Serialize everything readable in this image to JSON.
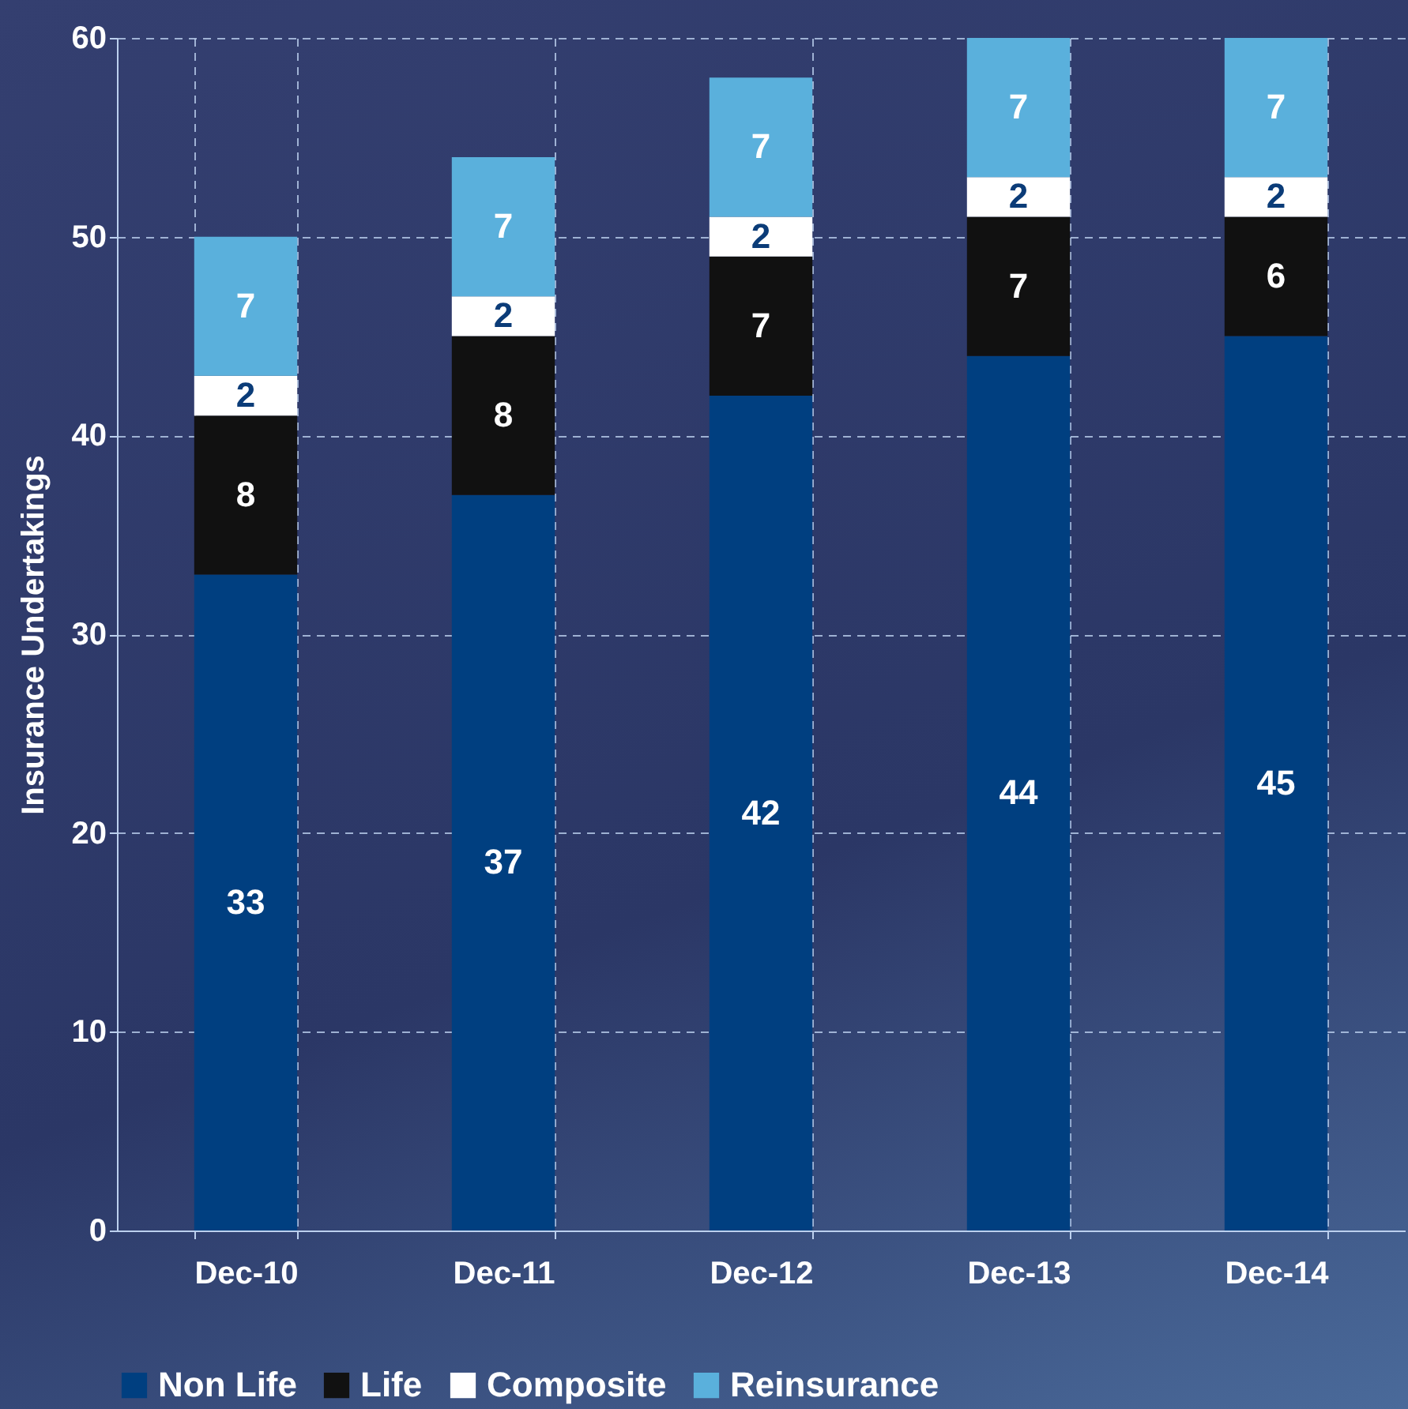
{
  "chart_data": {
    "type": "bar",
    "stacked": true,
    "ylabel": "Insurance Undertakings",
    "categories": [
      "Dec-10",
      "Dec-11",
      "Dec-12",
      "Dec-13",
      "Dec-14"
    ],
    "series": [
      {
        "name": "Non Life",
        "color": "#003f80",
        "values": [
          33,
          37,
          42,
          44,
          45
        ]
      },
      {
        "name": "Life",
        "color": "#111111",
        "values": [
          8,
          8,
          7,
          7,
          6
        ]
      },
      {
        "name": "Composite",
        "color": "#ffffff",
        "values": [
          2,
          2,
          2,
          2,
          2
        ]
      },
      {
        "name": "Reinsurance",
        "color": "#5ab0dc",
        "values": [
          7,
          7,
          7,
          7,
          7
        ]
      }
    ],
    "ylim": [
      0,
      60
    ],
    "yticks": [
      0,
      10,
      20,
      30,
      40,
      50,
      60
    ],
    "grid": true,
    "legend": "bottom",
    "data_labels": true
  }
}
